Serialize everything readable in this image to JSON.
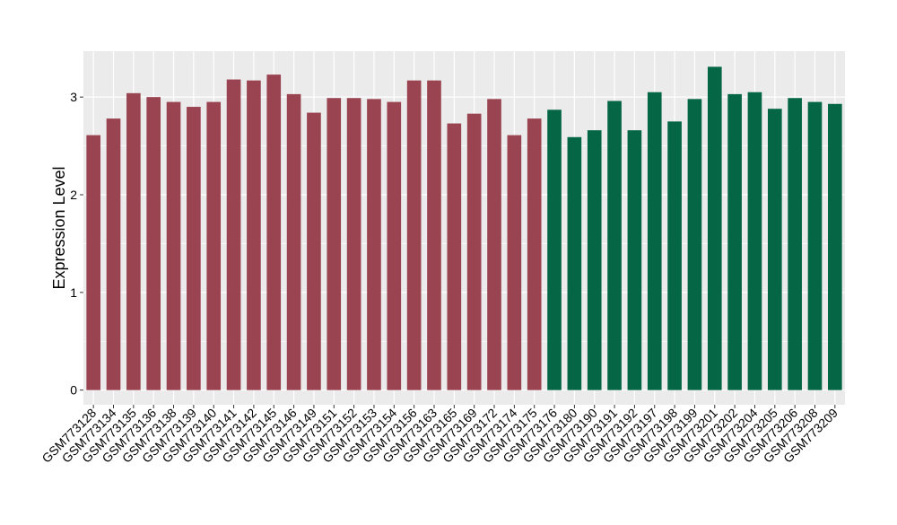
{
  "chart_data": {
    "type": "bar",
    "title": "",
    "xlabel": "",
    "ylabel": "Expression Level",
    "ylim": [
      -0.15,
      3.47
    ],
    "yticks": [
      0,
      1,
      2,
      3
    ],
    "ytick_labels": [
      "0",
      "1",
      "2",
      "3"
    ],
    "grid": true,
    "legend": "none",
    "panel_background": "#EBEBEB",
    "grid_color": "#FFFFFF",
    "categories": [
      "GSM773128",
      "GSM773134",
      "GSM773135",
      "GSM773136",
      "GSM773138",
      "GSM773139",
      "GSM773140",
      "GSM773141",
      "GSM773142",
      "GSM773145",
      "GSM773146",
      "GSM773149",
      "GSM773151",
      "GSM773152",
      "GSM773153",
      "GSM773154",
      "GSM773156",
      "GSM773163",
      "GSM773165",
      "GSM773169",
      "GSM773172",
      "GSM773174",
      "GSM773175",
      "GSM773176",
      "GSM773180",
      "GSM773190",
      "GSM773191",
      "GSM773192",
      "GSM773197",
      "GSM773198",
      "GSM773199",
      "GSM773201",
      "GSM773202",
      "GSM773204",
      "GSM773205",
      "GSM773206",
      "GSM773208",
      "GSM773209"
    ],
    "values": [
      2.61,
      2.78,
      3.04,
      3.0,
      2.95,
      2.9,
      2.95,
      3.18,
      3.17,
      3.23,
      3.03,
      2.84,
      2.99,
      2.99,
      2.98,
      2.95,
      3.17,
      3.17,
      2.73,
      2.83,
      2.98,
      2.61,
      2.78,
      2.87,
      2.59,
      2.66,
      2.96,
      2.66,
      3.05,
      2.75,
      2.98,
      3.31,
      3.03,
      3.05,
      2.88,
      2.99,
      2.95,
      2.93
    ],
    "bar_colors": [
      "#9A4451",
      "#9A4451",
      "#9A4451",
      "#9A4451",
      "#9A4451",
      "#9A4451",
      "#9A4451",
      "#9A4451",
      "#9A4451",
      "#9A4451",
      "#9A4451",
      "#9A4451",
      "#9A4451",
      "#9A4451",
      "#9A4451",
      "#9A4451",
      "#9A4451",
      "#9A4451",
      "#9A4451",
      "#9A4451",
      "#9A4451",
      "#9A4451",
      "#9A4451",
      "#046644",
      "#046644",
      "#046644",
      "#046644",
      "#046644",
      "#046644",
      "#046644",
      "#046644",
      "#046644",
      "#046644",
      "#046644",
      "#046644",
      "#046644",
      "#046644",
      "#046644"
    ]
  }
}
